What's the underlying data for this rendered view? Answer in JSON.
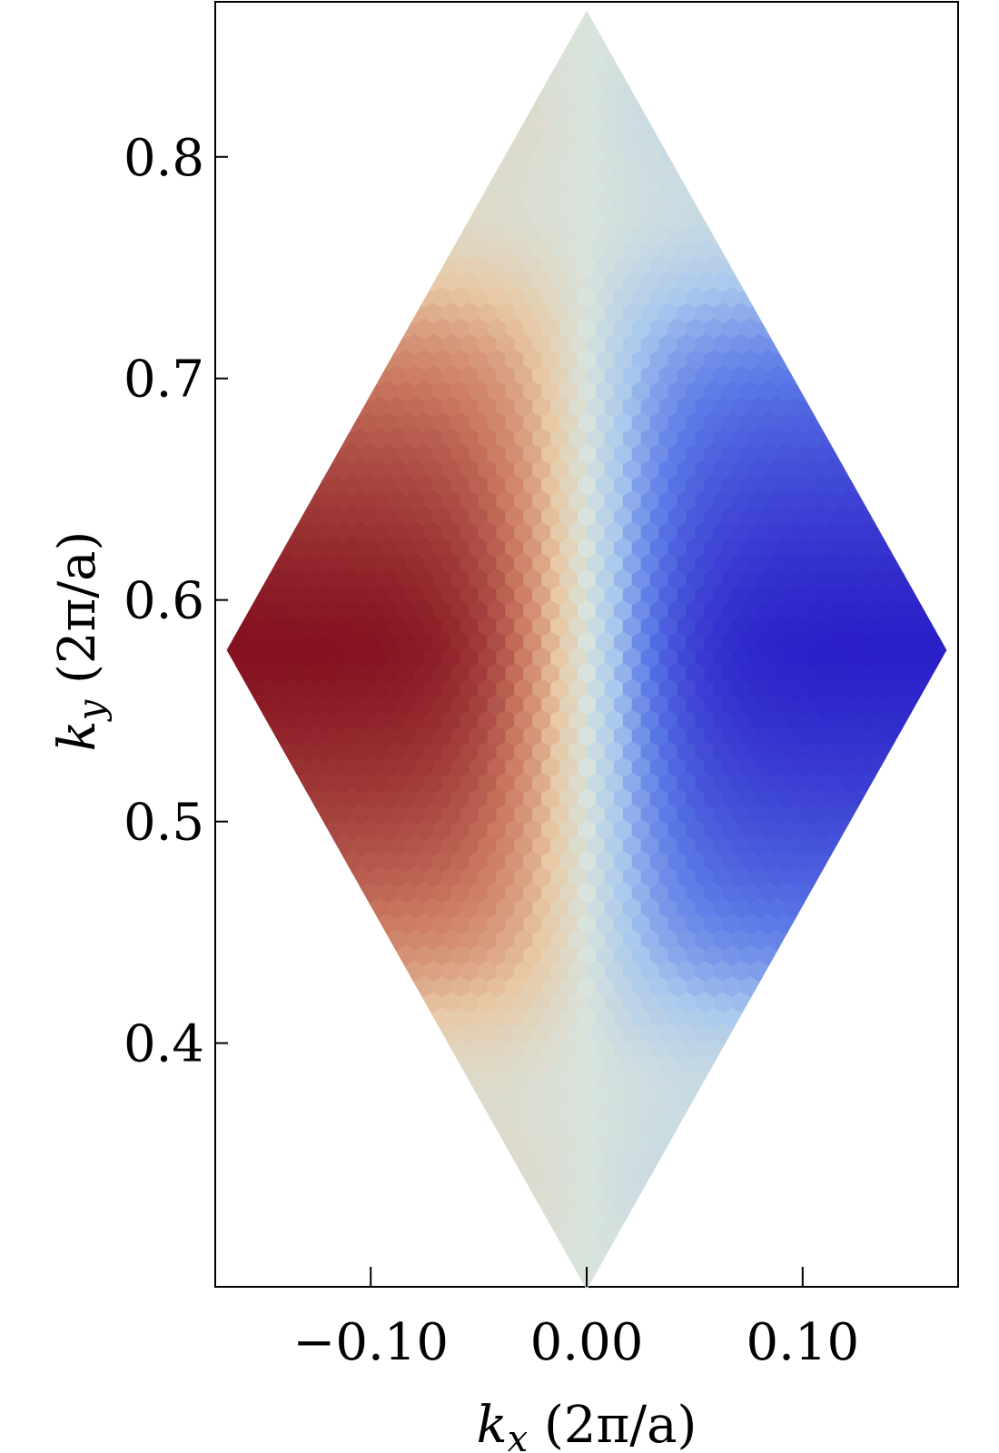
{
  "chart_data": {
    "type": "heatmap",
    "title": "",
    "xlabel_parts": {
      "var": "k",
      "sub": "x",
      "units": " (2π/a)"
    },
    "ylabel_parts": {
      "var": "k",
      "sub": "y",
      "units": " (2π/a)"
    },
    "xlim": [
      -0.172,
      0.172
    ],
    "ylim": [
      0.29,
      0.87
    ],
    "x_ticks": [
      {
        "value": -0.1,
        "label": "−0.10"
      },
      {
        "value": 0.0,
        "label": "0.00"
      },
      {
        "value": 0.1,
        "label": "0.10"
      }
    ],
    "y_ticks": [
      {
        "value": 0.4,
        "label": "0.4"
      },
      {
        "value": 0.5,
        "label": "0.5"
      },
      {
        "value": 0.6,
        "label": "0.6"
      },
      {
        "value": 0.7,
        "label": "0.7"
      },
      {
        "value": 0.8,
        "label": "0.8"
      }
    ],
    "domain": {
      "shape": "rhombus",
      "center": [
        0.0,
        0.5774
      ],
      "left_vertex": [
        -0.1667,
        0.5774
      ],
      "right_vertex": [
        0.1667,
        0.5774
      ],
      "top_vertex": [
        0.0,
        0.866
      ],
      "bottom_vertex": [
        0.0,
        0.2887
      ]
    },
    "colormap": "coolwarm_r",
    "color_stops": [
      "#2a1fc8",
      "#5a78e6",
      "#a9c8ee",
      "#d8e3dc",
      "#e8c8a4",
      "#cc7a62",
      "#84121f"
    ],
    "value_range": [
      -1,
      1
    ],
    "features": [
      {
        "kx": -0.165,
        "ky": 0.577,
        "value": 1.0
      },
      {
        "kx": 0.165,
        "ky": 0.577,
        "value": -1.0
      },
      {
        "kx": -0.04,
        "ky": 0.765,
        "value": -0.3
      },
      {
        "kx": 0.045,
        "ky": 0.77,
        "value": 0.3
      },
      {
        "kx": -0.04,
        "ky": 0.39,
        "value": -0.3
      },
      {
        "kx": 0.045,
        "ky": 0.385,
        "value": 0.3
      }
    ],
    "grid": false,
    "legend": "none"
  }
}
